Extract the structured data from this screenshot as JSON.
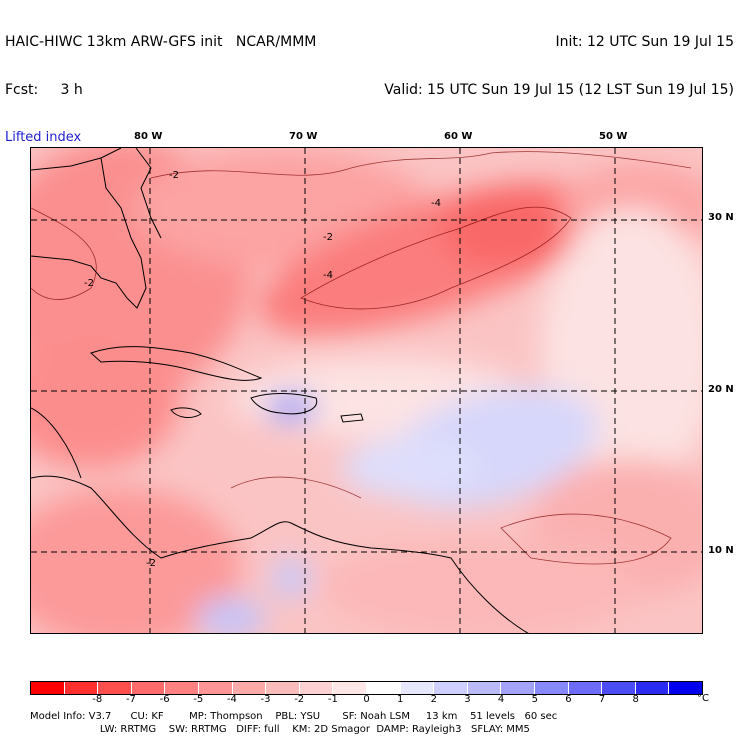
{
  "header": {
    "model_title": "HAIC-HIWC 13km ARW-GFS init   NCAR/MMM",
    "forecast_line": "Fcst:     3 h",
    "init_line": "Init: 12 UTC Sun 19 Jul 15",
    "valid_line": "Valid: 15 UTC Sun 19 Jul 15 (12 LST Sun 19 Jul 15)",
    "field_name": "Lifted index"
  },
  "map": {
    "longitude_labels": [
      "80 W",
      "70 W",
      "60 W",
      "50 W"
    ],
    "latitude_labels": [
      "30 N",
      "20 N",
      "10 N"
    ],
    "contour_labels": [
      "-2",
      "-2",
      "-2",
      "-2",
      "-4",
      "-4"
    ]
  },
  "colorbar": {
    "colors": [
      "#ff0000",
      "#ff3030",
      "#ff4f4f",
      "#ff6a6a",
      "#fe8282",
      "#fd9797",
      "#fcaaaa",
      "#fbbcbc",
      "#fdd1d1",
      "#ffe7e7",
      "#ffffff",
      "#e7e7ff",
      "#cfcffd",
      "#bbbbfc",
      "#a3a3fa",
      "#8888f8",
      "#6c6cf6",
      "#4d4df5",
      "#2b2bf2",
      "#0000ee"
    ],
    "tick_labels": [
      "-8",
      "-7",
      "-6",
      "-5",
      "-4",
      "-3",
      "-2",
      "-1",
      "0",
      "1",
      "2",
      "3",
      "4",
      "5",
      "6",
      "7",
      "8"
    ],
    "unit": "°C"
  },
  "model_info": {
    "line1": "Model Info: V3.7      CU: KF        MP: Thompson    PBL: YSU       SF: Noah LSM     13 km    51 levels   60 sec",
    "line2": "                      LW: RRTMG    SW: RRTMG   DIFF: full    KM: 2D Smagor  DAMP: Rayleigh3   SFLAY: MM5"
  }
}
